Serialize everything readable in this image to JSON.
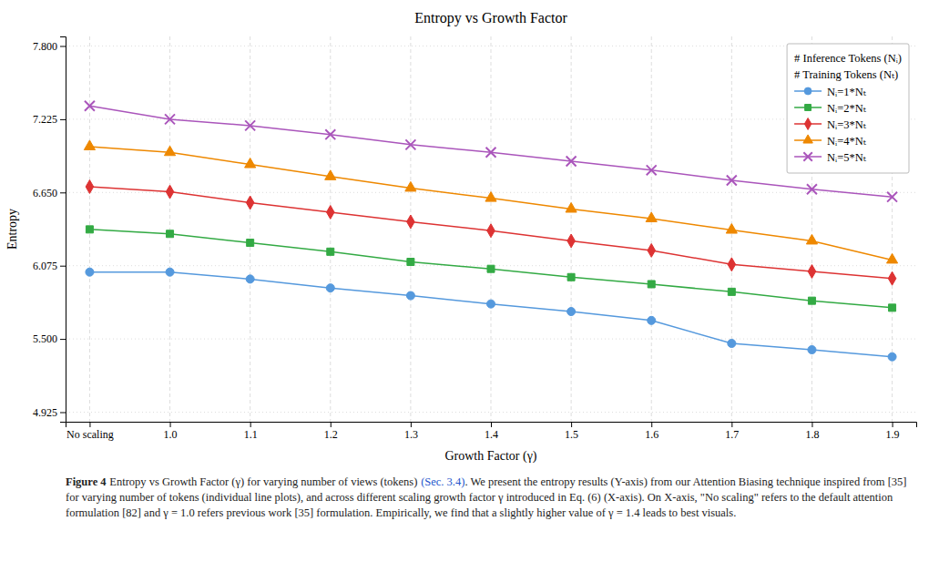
{
  "chart_data": {
    "type": "line",
    "title": "Entropy vs Growth Factor",
    "xlabel": "Growth Factor (γ)",
    "ylabel": "Entropy",
    "categories": [
      "No scaling",
      "1.0",
      "1.1",
      "1.2",
      "1.3",
      "1.4",
      "1.5",
      "1.6",
      "1.7",
      "1.8",
      "1.9"
    ],
    "series": [
      {
        "name": "Nᵢ=1*Nₜ",
        "color": "#5599dd",
        "marker": "circle",
        "values": [
          6.025,
          6.025,
          5.97,
          5.9,
          5.84,
          5.775,
          5.715,
          5.645,
          5.465,
          5.415,
          5.36
        ]
      },
      {
        "name": "Nᵢ=2*Nₜ",
        "color": "#33aa44",
        "marker": "square",
        "values": [
          6.36,
          6.325,
          6.255,
          6.185,
          6.105,
          6.05,
          5.985,
          5.93,
          5.87,
          5.8,
          5.745
        ]
      },
      {
        "name": "Nᵢ=3*Nₜ",
        "color": "#dd3333",
        "marker": "diamond",
        "values": [
          6.695,
          6.655,
          6.57,
          6.495,
          6.42,
          6.35,
          6.27,
          6.195,
          6.085,
          6.03,
          5.975
        ]
      },
      {
        "name": "Nᵢ=4*Nₜ",
        "color": "#ee8800",
        "marker": "triangle",
        "values": [
          7.01,
          6.965,
          6.87,
          6.775,
          6.685,
          6.605,
          6.52,
          6.445,
          6.355,
          6.27,
          6.12
        ]
      },
      {
        "name": "Nᵢ=5*Nₜ",
        "color": "#aa55bb",
        "marker": "cross",
        "values": [
          7.33,
          7.225,
          7.175,
          7.105,
          7.025,
          6.965,
          6.895,
          6.825,
          6.745,
          6.675,
          6.615
        ]
      }
    ],
    "ylim": [
      4.85,
      7.875
    ],
    "yticks": [
      4.925,
      {
        "value": 5.5,
        "label": "5.500"
      },
      6.075,
      {
        "value": 6.65,
        "label": "6.650"
      },
      7.225,
      {
        "value": 7.8,
        "label": "7.800"
      }
    ],
    "grid": true,
    "legend": "upper right",
    "legend_title": [
      "# Inference Tokens (Nᵢ)",
      "# Training Tokens (Nₜ)"
    ],
    "caption": [
      "Figure 4",
      "Entropy vs Growth Factor (γ) for varying number of views (tokens)",
      "(Sec. 3.4)",
      ". We present the entropy results (Y-axis) from our Attention Biasing technique inspired from [35] for varying number of tokens (individual line plots), and across different scaling growth factor γ introduced in Eq. (6) (X-axis). On X-axis, \"No scaling\" refers to the default attention formulation [82] and γ = 1.0 refers previous work [35] formulation. Empirically, we find that a slightly higher value of γ = 1.4 leads to best visuals."
    ]
  }
}
